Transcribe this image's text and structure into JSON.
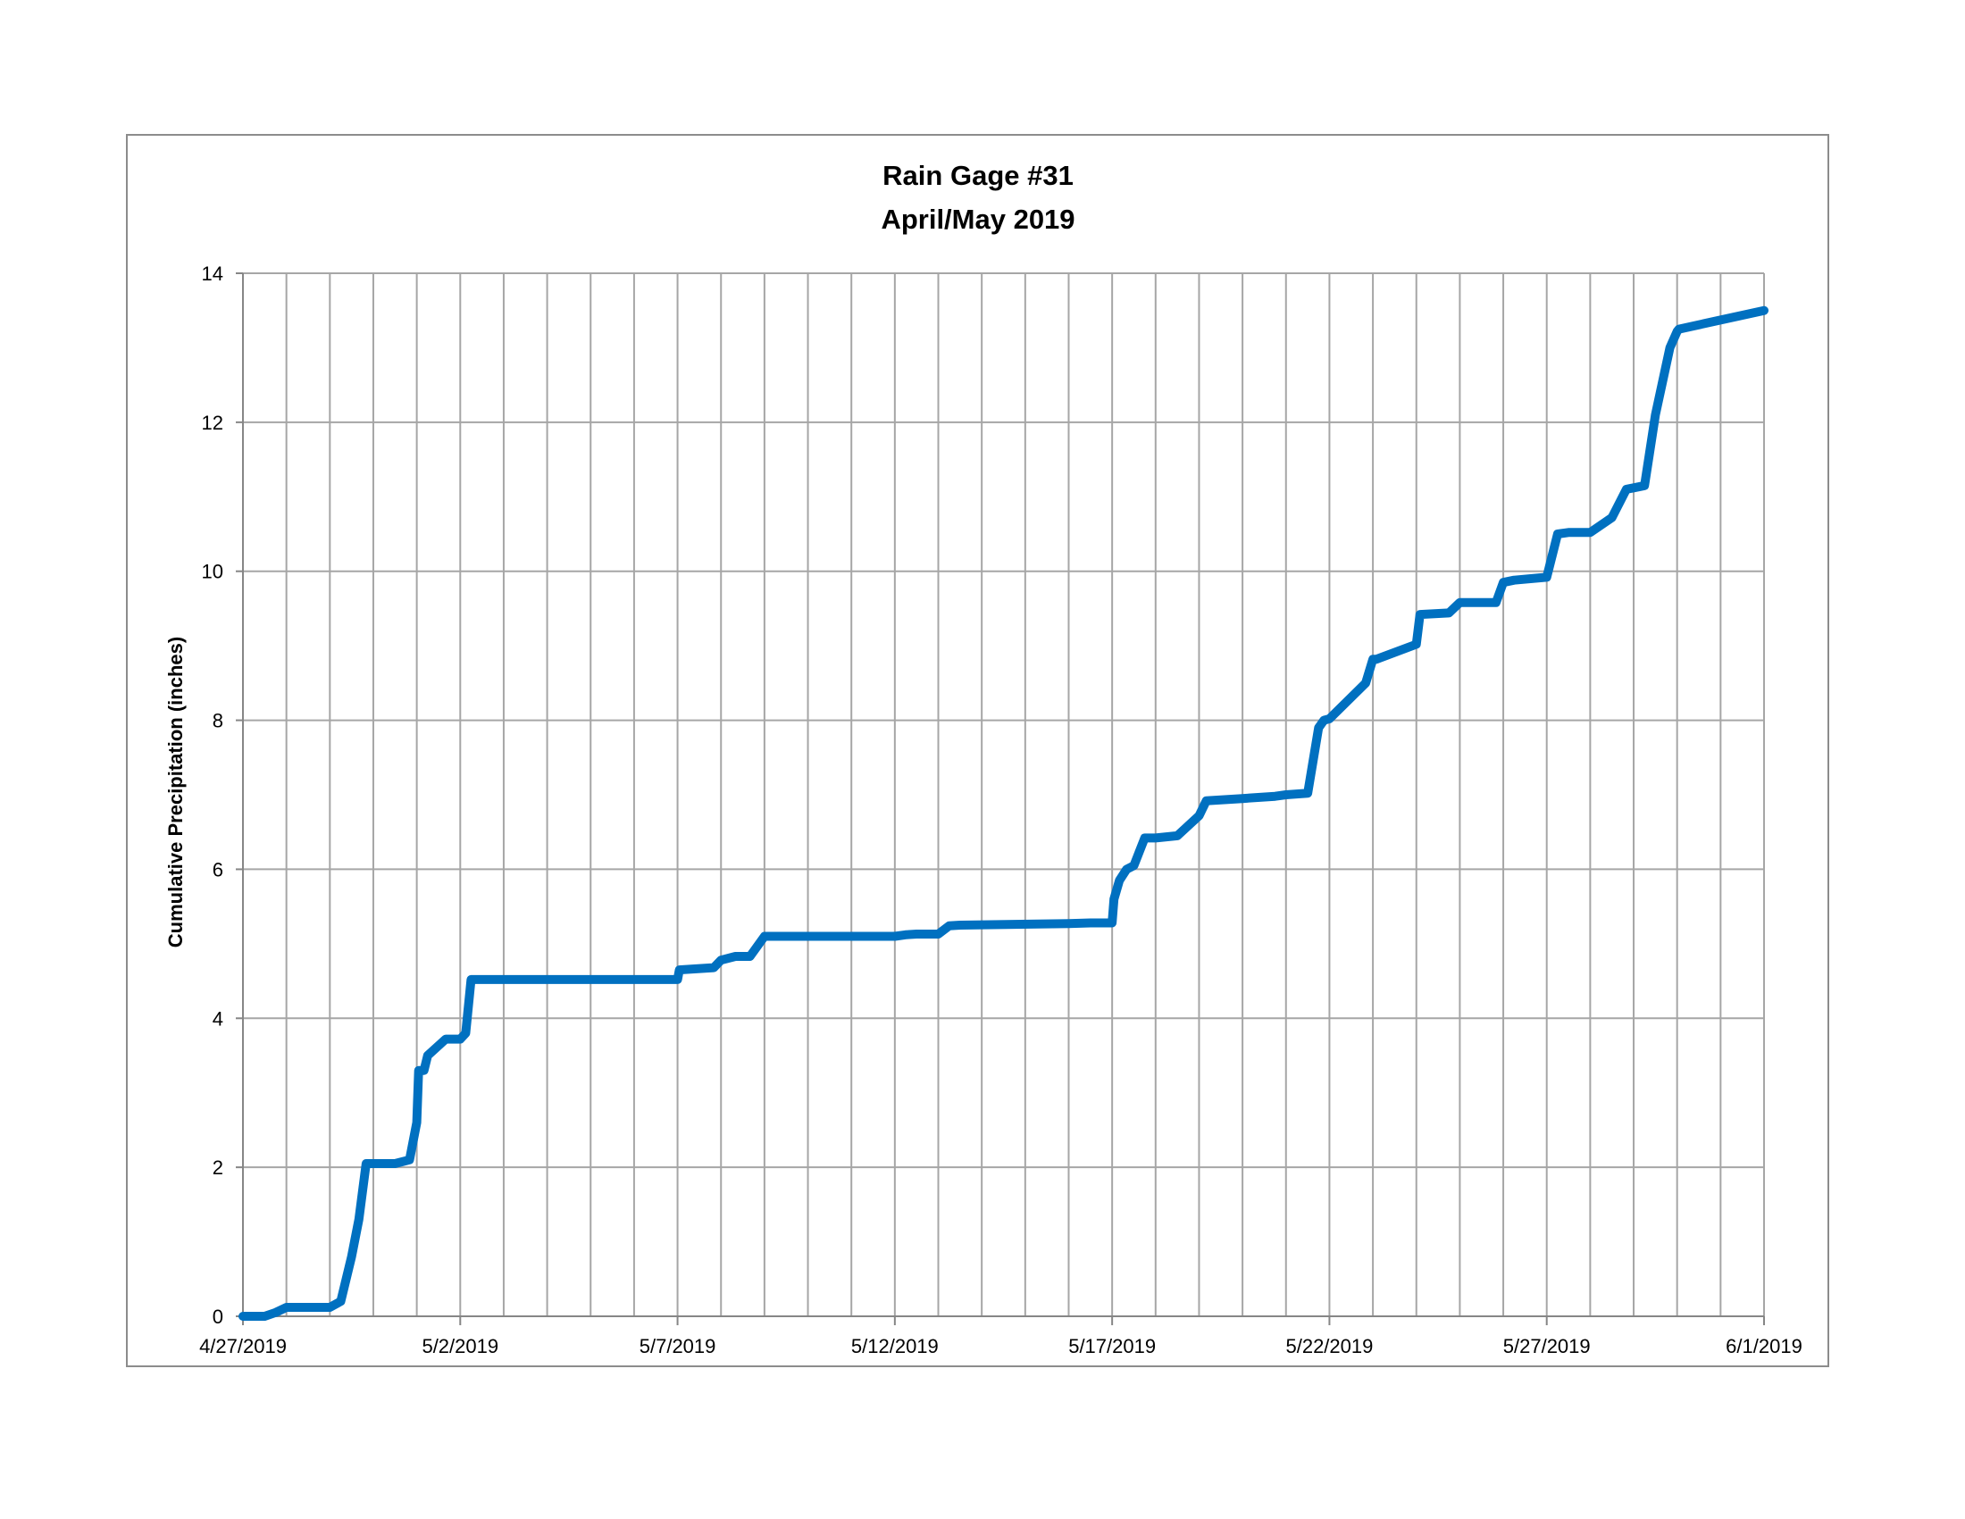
{
  "chart_data": {
    "type": "line",
    "title": [
      "Rain Gage #31",
      "April/May 2019"
    ],
    "xlabel": "",
    "ylabel": "Cumulative Precipitation (inches)",
    "x_range": [
      "4/27/2019",
      "6/1/2019"
    ],
    "x_tick_labels": [
      "4/27/2019",
      "5/2/2019",
      "5/7/2019",
      "5/12/2019",
      "5/17/2019",
      "5/22/2019",
      "5/27/2019",
      "6/1/2019"
    ],
    "x_gridlines": "daily",
    "ylim": [
      0,
      14
    ],
    "y_ticks": [
      0,
      2,
      4,
      6,
      8,
      10,
      12,
      14
    ],
    "grid": true,
    "legend": "none",
    "series_color": "#0070c0",
    "series": [
      {
        "x": [
          "4/27/2019 00:00",
          "4/27/2019 12:00",
          "4/27/2019 18:00",
          "4/28/2019 00:00",
          "4/28/2019 12:00",
          "4/28/2019 18:00",
          "4/29/2019 00:00",
          "4/29/2019 06:00",
          "4/29/2019 12:00",
          "4/29/2019 16:00",
          "4/29/2019 20:00",
          "4/30/2019 00:00",
          "4/30/2019 01:00",
          "4/30/2019 12:00",
          "4/30/2019 20:00",
          "5/1/2019 00:00",
          "5/1/2019 01:00",
          "5/1/2019 04:00",
          "5/1/2019 06:00",
          "5/1/2019 16:00",
          "5/1/2019 20:00",
          "5/2/2019 00:00",
          "5/2/2019 03:00",
          "5/2/2019 06:00",
          "5/2/2019 12:00",
          "5/7/2019 00:00",
          "5/7/2019 01:00",
          "5/7/2019 20:00",
          "5/8/2019 00:00",
          "5/8/2019 08:00",
          "5/8/2019 16:00",
          "5/9/2019 00:00",
          "5/9/2019 08:00",
          "5/12/2019 00:00",
          "5/12/2019 06:00",
          "5/12/2019 12:00",
          "5/13/2019 00:00",
          "5/13/2019 06:00",
          "5/13/2019 12:00",
          "5/16/2019 00:00",
          "5/16/2019 12:00",
          "5/17/2019 00:00",
          "5/17/2019 01:00",
          "5/17/2019 04:00",
          "5/17/2019 08:00",
          "5/17/2019 12:00",
          "5/17/2019 18:00",
          "5/18/2019 00:00",
          "5/18/2019 12:00",
          "5/19/2019 00:00",
          "5/19/2019 04:00",
          "5/20/2019 00:00",
          "5/20/2019 18:00",
          "5/21/2019 00:00",
          "5/21/2019 12:00",
          "5/21/2019 18:00",
          "5/21/2019 21:00",
          "5/22/2019 00:00",
          "5/22/2019 20:00",
          "5/23/2019 00:00",
          "5/23/2019 02:00",
          "5/24/2019 00:00",
          "5/24/2019 02:00",
          "5/24/2019 18:00",
          "5/25/2019 00:00",
          "5/25/2019 02:00",
          "5/25/2019 20:00",
          "5/26/2019 00:00",
          "5/26/2019 06:00",
          "5/27/2019 00:00",
          "5/27/2019 06:00",
          "5/27/2019 12:00",
          "5/28/2019 00:00",
          "5/28/2019 12:00",
          "5/28/2019 20:00",
          "5/29/2019 00:00",
          "5/29/2019 06:00",
          "5/29/2019 12:00",
          "5/29/2019 20:00",
          "5/30/2019 00:00",
          "5/30/2019 01:00",
          "6/1/2019 00:00"
        ],
        "values": [
          0.0,
          0.0,
          0.05,
          0.12,
          0.12,
          0.12,
          0.12,
          0.2,
          0.8,
          1.3,
          2.05,
          2.05,
          2.05,
          2.05,
          2.1,
          2.6,
          3.3,
          3.3,
          3.5,
          3.72,
          3.72,
          3.72,
          3.8,
          4.52,
          4.52,
          4.52,
          4.65,
          4.68,
          4.78,
          4.83,
          4.83,
          5.1,
          5.1,
          5.1,
          5.12,
          5.13,
          5.13,
          5.24,
          5.25,
          5.27,
          5.28,
          5.28,
          5.6,
          5.85,
          6.0,
          6.05,
          6.42,
          6.42,
          6.45,
          6.72,
          6.92,
          6.95,
          6.98,
          7.0,
          7.02,
          7.9,
          8.0,
          8.02,
          8.5,
          8.82,
          8.82,
          9.02,
          9.42,
          9.44,
          9.58,
          9.58,
          9.58,
          9.85,
          9.88,
          9.92,
          10.5,
          10.52,
          10.52,
          10.72,
          11.1,
          11.12,
          11.15,
          12.1,
          13.0,
          13.22,
          13.25,
          13.5
        ]
      }
    ]
  }
}
